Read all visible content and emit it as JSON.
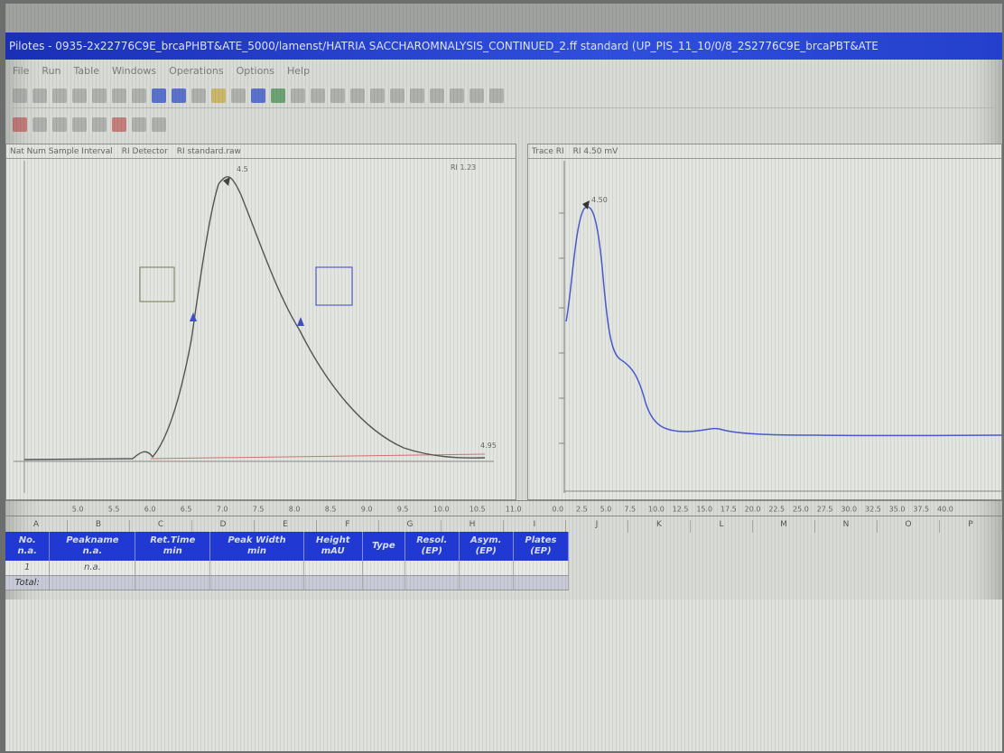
{
  "window": {
    "title": "Pilotes - 0935-2x22776C9E_brcaPHBT&ATE_5000/lamenst/HATRIA SACCHAROMNALYSIS_CONTINUED_2.ff standard (UP_PIS_11_10/0/8_2S2776C9E_brcaPBT&ATE"
  },
  "menu": [
    "File",
    "Run",
    "Table",
    "Windows",
    "Operations",
    "Options",
    "Help"
  ],
  "left_chart": {
    "tabs": [
      "Nat Num Sample Interval",
      "RI Detector",
      "RI standard.raw"
    ],
    "header_right": "RI 1.23",
    "peak_label": "4.5",
    "end_label": "4.95",
    "x_ticks": [
      "5.0",
      "5.5",
      "6.0",
      "6.5",
      "7.0",
      "7.5",
      "8.0",
      "8.5",
      "9.0",
      "9.5",
      "10.0",
      "10.5",
      "11.0"
    ]
  },
  "right_chart": {
    "tabs": [
      "Trace RI",
      "RI 4.50 mV"
    ],
    "peak_label": "4.50",
    "x_ticks": [
      "0.0",
      "2.5",
      "5.0",
      "7.5",
      "10.0",
      "12.5",
      "15.0",
      "17.5",
      "20.0",
      "22.5",
      "25.0",
      "27.5",
      "30.0",
      "32.5",
      "35.0",
      "37.5",
      "40.0"
    ]
  },
  "columns": [
    "A",
    "B",
    "C",
    "D",
    "E",
    "F",
    "G",
    "H",
    "I",
    "J",
    "K",
    "L",
    "M",
    "N",
    "O",
    "P"
  ],
  "results_table": {
    "headers": [
      [
        "No.",
        "n.a."
      ],
      [
        "Peakname",
        "n.a."
      ],
      [
        "Ret.Time",
        "min"
      ],
      [
        "Peak Width",
        "min"
      ],
      [
        "Height",
        "mAU"
      ],
      [
        "Type",
        ""
      ],
      [
        "Resol.",
        "(EP)"
      ],
      [
        "Asym.",
        "(EP)"
      ],
      [
        "Plates",
        "(EP)"
      ]
    ],
    "rows": [
      [
        "1",
        "n.a.",
        "",
        "",
        "",
        "",
        "",
        "",
        ""
      ]
    ],
    "summary": [
      "Total:",
      "",
      "",
      "",
      "",
      "",
      "",
      "",
      ""
    ]
  }
}
